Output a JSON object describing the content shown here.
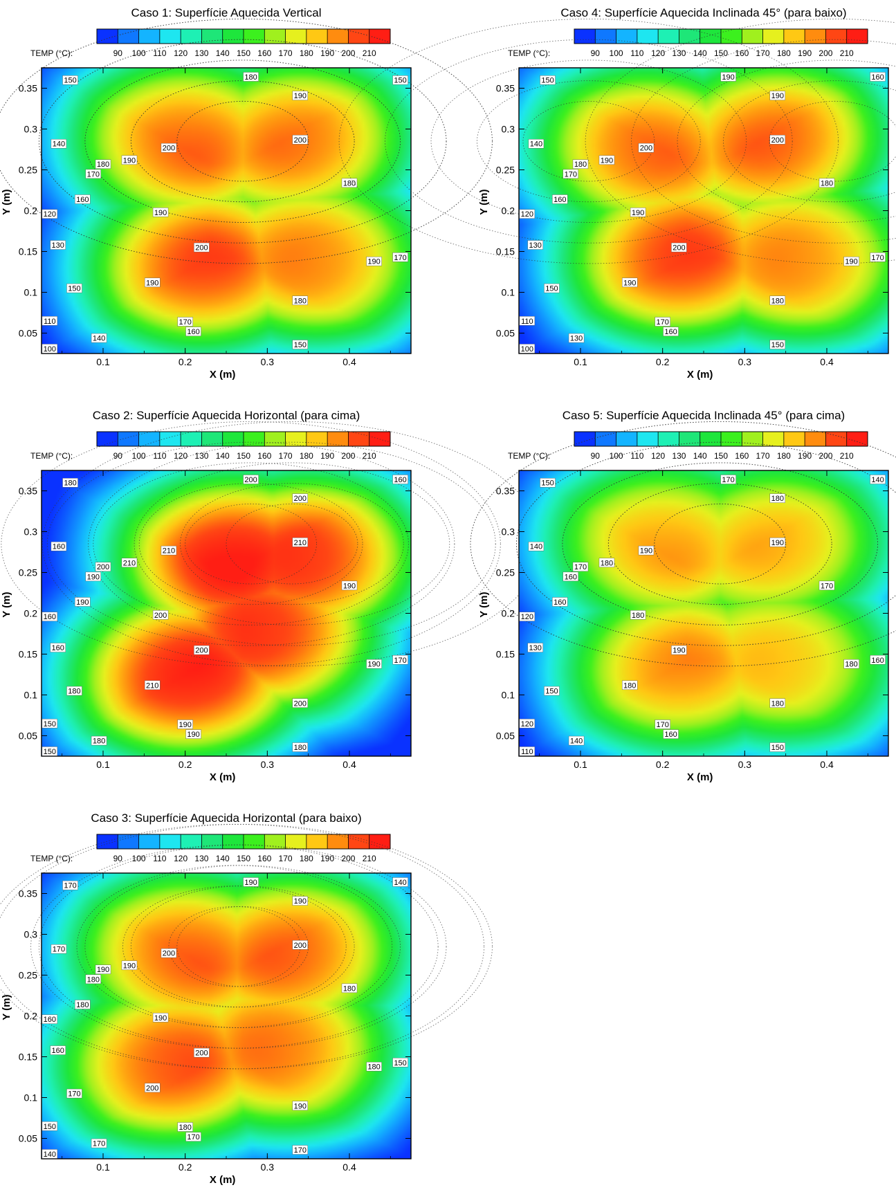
{
  "colorbar": {
    "label": "TEMP (°C):",
    "ticks": [
      "90",
      "100",
      "110",
      "120",
      "130",
      "140",
      "150",
      "160",
      "170",
      "180",
      "190",
      "200",
      "210"
    ],
    "colors": [
      "#0a32ff",
      "#0f78ff",
      "#14b4ff",
      "#1ee6f0",
      "#1ef0b4",
      "#1ee678",
      "#1ee63c",
      "#3cf01e",
      "#a0f01e",
      "#e6f01e",
      "#ffc814",
      "#ff8c0f",
      "#ff4614",
      "#ff1e14"
    ]
  },
  "chart_data": [
    {
      "type": "heatmap",
      "title": "Caso 1: Superfície Aquecida Vertical",
      "xlabel": "X (m)",
      "ylabel": "Y (m)",
      "xlim": [
        0.025,
        0.475
      ],
      "ylim": [
        0.025,
        0.375
      ],
      "xticks": [
        "0.1",
        "0.2",
        "0.3",
        "0.4"
      ],
      "yticks": [
        "0.05",
        "0.1",
        "0.15",
        "0.2",
        "0.25",
        "0.3",
        "0.35"
      ],
      "hotspots": [
        {
          "x": 0.2,
          "y": 0.29,
          "value": 200
        },
        {
          "x": 0.34,
          "y": 0.29,
          "value": 200
        },
        {
          "x": 0.22,
          "y": 0.13,
          "value": 203
        },
        {
          "x": 0.36,
          "y": 0.14,
          "value": 199
        }
      ],
      "contour_labels": [
        {
          "x": 0.06,
          "y": 0.36,
          "text": "150"
        },
        {
          "x": 0.28,
          "y": 0.364,
          "text": "180"
        },
        {
          "x": 0.462,
          "y": 0.36,
          "text": "150"
        },
        {
          "x": 0.34,
          "y": 0.341,
          "text": "190"
        },
        {
          "x": 0.046,
          "y": 0.282,
          "text": "140"
        },
        {
          "x": 0.18,
          "y": 0.277,
          "text": "200"
        },
        {
          "x": 0.34,
          "y": 0.287,
          "text": "200"
        },
        {
          "x": 0.132,
          "y": 0.262,
          "text": "190"
        },
        {
          "x": 0.1,
          "y": 0.257,
          "text": "180"
        },
        {
          "x": 0.088,
          "y": 0.245,
          "text": "170"
        },
        {
          "x": 0.4,
          "y": 0.234,
          "text": "180"
        },
        {
          "x": 0.075,
          "y": 0.214,
          "text": "160"
        },
        {
          "x": 0.035,
          "y": 0.196,
          "text": "120"
        },
        {
          "x": 0.17,
          "y": 0.198,
          "text": "190"
        },
        {
          "x": 0.045,
          "y": 0.158,
          "text": "130"
        },
        {
          "x": 0.22,
          "y": 0.155,
          "text": "200"
        },
        {
          "x": 0.462,
          "y": 0.143,
          "text": "170"
        },
        {
          "x": 0.43,
          "y": 0.138,
          "text": "190"
        },
        {
          "x": 0.16,
          "y": 0.112,
          "text": "190"
        },
        {
          "x": 0.065,
          "y": 0.105,
          "text": "150"
        },
        {
          "x": 0.34,
          "y": 0.09,
          "text": "180"
        },
        {
          "x": 0.035,
          "y": 0.065,
          "text": "110"
        },
        {
          "x": 0.2,
          "y": 0.064,
          "text": "170"
        },
        {
          "x": 0.21,
          "y": 0.052,
          "text": "160"
        },
        {
          "x": 0.095,
          "y": 0.044,
          "text": "140"
        },
        {
          "x": 0.34,
          "y": 0.036,
          "text": "150"
        },
        {
          "x": 0.035,
          "y": 0.031,
          "text": "100"
        }
      ]
    },
    {
      "type": "heatmap",
      "title": "Caso 4: Superfície Aquecida Inclinada 45° (para baixo)",
      "xlabel": "X (m)",
      "ylabel": "Y (m)",
      "xlim": [
        0.025,
        0.475
      ],
      "ylim": [
        0.025,
        0.375
      ],
      "xticks": [
        "0.1",
        "0.2",
        "0.3",
        "0.4"
      ],
      "yticks": [
        "0.05",
        "0.1",
        "0.15",
        "0.2",
        "0.25",
        "0.3",
        "0.35"
      ],
      "hotspots": [
        {
          "x": 0.34,
          "y": 0.29,
          "value": 203
        },
        {
          "x": 0.18,
          "y": 0.28,
          "value": 200
        },
        {
          "x": 0.22,
          "y": 0.14,
          "value": 203
        },
        {
          "x": 0.37,
          "y": 0.14,
          "value": 199
        }
      ],
      "contour_labels": [
        {
          "x": 0.06,
          "y": 0.36,
          "text": "150"
        },
        {
          "x": 0.28,
          "y": 0.364,
          "text": "190"
        },
        {
          "x": 0.462,
          "y": 0.364,
          "text": "160"
        },
        {
          "x": 0.34,
          "y": 0.341,
          "text": "190"
        },
        {
          "x": 0.046,
          "y": 0.282,
          "text": "140"
        },
        {
          "x": 0.18,
          "y": 0.277,
          "text": "200"
        },
        {
          "x": 0.34,
          "y": 0.287,
          "text": "200"
        },
        {
          "x": 0.132,
          "y": 0.262,
          "text": "190"
        },
        {
          "x": 0.1,
          "y": 0.257,
          "text": "180"
        },
        {
          "x": 0.088,
          "y": 0.245,
          "text": "170"
        },
        {
          "x": 0.4,
          "y": 0.234,
          "text": "180"
        },
        {
          "x": 0.075,
          "y": 0.214,
          "text": "160"
        },
        {
          "x": 0.035,
          "y": 0.196,
          "text": "120"
        },
        {
          "x": 0.17,
          "y": 0.198,
          "text": "190"
        },
        {
          "x": 0.045,
          "y": 0.158,
          "text": "130"
        },
        {
          "x": 0.22,
          "y": 0.155,
          "text": "200"
        },
        {
          "x": 0.462,
          "y": 0.143,
          "text": "170"
        },
        {
          "x": 0.43,
          "y": 0.138,
          "text": "190"
        },
        {
          "x": 0.16,
          "y": 0.112,
          "text": "190"
        },
        {
          "x": 0.065,
          "y": 0.105,
          "text": "150"
        },
        {
          "x": 0.34,
          "y": 0.09,
          "text": "180"
        },
        {
          "x": 0.035,
          "y": 0.065,
          "text": "110"
        },
        {
          "x": 0.2,
          "y": 0.064,
          "text": "170"
        },
        {
          "x": 0.21,
          "y": 0.052,
          "text": "160"
        },
        {
          "x": 0.095,
          "y": 0.044,
          "text": "130"
        },
        {
          "x": 0.34,
          "y": 0.036,
          "text": "150"
        },
        {
          "x": 0.035,
          "y": 0.031,
          "text": "100"
        }
      ]
    },
    {
      "type": "heatmap",
      "title": "Caso 2: Superfície Aquecida Horizontal (para cima)",
      "xlabel": "X (m)",
      "ylabel": "Y (m)",
      "xlim": [
        0.025,
        0.475
      ],
      "ylim": [
        0.025,
        0.375
      ],
      "xticks": [
        "0.1",
        "0.2",
        "0.3",
        "0.4"
      ],
      "yticks": [
        "0.05",
        "0.1",
        "0.15",
        "0.2",
        "0.25",
        "0.3",
        "0.35"
      ],
      "hotspots": [
        {
          "x": 0.26,
          "y": 0.27,
          "value": 212
        },
        {
          "x": 0.35,
          "y": 0.27,
          "value": 211
        },
        {
          "x": 0.2,
          "y": 0.12,
          "value": 212
        },
        {
          "x": 0.3,
          "y": 0.18,
          "value": 206
        }
      ],
      "contour_labels": [
        {
          "x": 0.06,
          "y": 0.36,
          "text": "180"
        },
        {
          "x": 0.28,
          "y": 0.364,
          "text": "200"
        },
        {
          "x": 0.462,
          "y": 0.364,
          "text": "160"
        },
        {
          "x": 0.34,
          "y": 0.341,
          "text": "200"
        },
        {
          "x": 0.046,
          "y": 0.282,
          "text": "160"
        },
        {
          "x": 0.18,
          "y": 0.277,
          "text": "210"
        },
        {
          "x": 0.34,
          "y": 0.287,
          "text": "210"
        },
        {
          "x": 0.132,
          "y": 0.262,
          "text": "210"
        },
        {
          "x": 0.1,
          "y": 0.257,
          "text": "200"
        },
        {
          "x": 0.088,
          "y": 0.245,
          "text": "190"
        },
        {
          "x": 0.4,
          "y": 0.234,
          "text": "190"
        },
        {
          "x": 0.075,
          "y": 0.214,
          "text": "190"
        },
        {
          "x": 0.035,
          "y": 0.196,
          "text": "160"
        },
        {
          "x": 0.17,
          "y": 0.198,
          "text": "200"
        },
        {
          "x": 0.045,
          "y": 0.158,
          "text": "160"
        },
        {
          "x": 0.22,
          "y": 0.155,
          "text": "200"
        },
        {
          "x": 0.462,
          "y": 0.143,
          "text": "170"
        },
        {
          "x": 0.43,
          "y": 0.138,
          "text": "190"
        },
        {
          "x": 0.16,
          "y": 0.112,
          "text": "210"
        },
        {
          "x": 0.065,
          "y": 0.105,
          "text": "180"
        },
        {
          "x": 0.34,
          "y": 0.09,
          "text": "200"
        },
        {
          "x": 0.035,
          "y": 0.065,
          "text": "150"
        },
        {
          "x": 0.2,
          "y": 0.064,
          "text": "190"
        },
        {
          "x": 0.21,
          "y": 0.052,
          "text": "190"
        },
        {
          "x": 0.095,
          "y": 0.044,
          "text": "180"
        },
        {
          "x": 0.34,
          "y": 0.036,
          "text": "180"
        },
        {
          "x": 0.035,
          "y": 0.031,
          "text": "150"
        }
      ]
    },
    {
      "type": "heatmap",
      "title": "Caso 5: Superfície Aquecida Inclinada 45° (para cima)",
      "xlabel": "X (m)",
      "ylabel": "Y (m)",
      "xlim": [
        0.025,
        0.475
      ],
      "ylim": [
        0.025,
        0.375
      ],
      "xticks": [
        "0.1",
        "0.2",
        "0.3",
        "0.4"
      ],
      "yticks": [
        "0.05",
        "0.1",
        "0.15",
        "0.2",
        "0.25",
        "0.3",
        "0.35"
      ],
      "hotspots": [
        {
          "x": 0.2,
          "y": 0.29,
          "value": 191
        },
        {
          "x": 0.34,
          "y": 0.29,
          "value": 191
        },
        {
          "x": 0.22,
          "y": 0.13,
          "value": 192
        },
        {
          "x": 0.35,
          "y": 0.14,
          "value": 188
        }
      ],
      "contour_labels": [
        {
          "x": 0.06,
          "y": 0.36,
          "text": "150"
        },
        {
          "x": 0.28,
          "y": 0.364,
          "text": "170"
        },
        {
          "x": 0.462,
          "y": 0.364,
          "text": "140"
        },
        {
          "x": 0.34,
          "y": 0.341,
          "text": "180"
        },
        {
          "x": 0.046,
          "y": 0.282,
          "text": "140"
        },
        {
          "x": 0.18,
          "y": 0.277,
          "text": "190"
        },
        {
          "x": 0.34,
          "y": 0.287,
          "text": "190"
        },
        {
          "x": 0.132,
          "y": 0.262,
          "text": "180"
        },
        {
          "x": 0.1,
          "y": 0.257,
          "text": "170"
        },
        {
          "x": 0.088,
          "y": 0.245,
          "text": "160"
        },
        {
          "x": 0.4,
          "y": 0.234,
          "text": "170"
        },
        {
          "x": 0.075,
          "y": 0.214,
          "text": "160"
        },
        {
          "x": 0.035,
          "y": 0.196,
          "text": "120"
        },
        {
          "x": 0.17,
          "y": 0.198,
          "text": "180"
        },
        {
          "x": 0.045,
          "y": 0.158,
          "text": "130"
        },
        {
          "x": 0.22,
          "y": 0.155,
          "text": "190"
        },
        {
          "x": 0.462,
          "y": 0.143,
          "text": "160"
        },
        {
          "x": 0.43,
          "y": 0.138,
          "text": "180"
        },
        {
          "x": 0.16,
          "y": 0.112,
          "text": "180"
        },
        {
          "x": 0.065,
          "y": 0.105,
          "text": "150"
        },
        {
          "x": 0.34,
          "y": 0.09,
          "text": "180"
        },
        {
          "x": 0.035,
          "y": 0.065,
          "text": "120"
        },
        {
          "x": 0.2,
          "y": 0.064,
          "text": "170"
        },
        {
          "x": 0.21,
          "y": 0.052,
          "text": "160"
        },
        {
          "x": 0.095,
          "y": 0.044,
          "text": "140"
        },
        {
          "x": 0.34,
          "y": 0.036,
          "text": "150"
        },
        {
          "x": 0.035,
          "y": 0.031,
          "text": "110"
        }
      ]
    },
    {
      "type": "heatmap",
      "title": "Caso 3: Superfície Aquecida Horizontal (para baixo)",
      "xlabel": "X (m)",
      "ylabel": "Y (m)",
      "xlim": [
        0.025,
        0.475
      ],
      "ylim": [
        0.025,
        0.375
      ],
      "xticks": [
        "0.1",
        "0.2",
        "0.3",
        "0.4"
      ],
      "yticks": [
        "0.05",
        "0.1",
        "0.15",
        "0.2",
        "0.25",
        "0.3",
        "0.35"
      ],
      "hotspots": [
        {
          "x": 0.2,
          "y": 0.28,
          "value": 200
        },
        {
          "x": 0.33,
          "y": 0.28,
          "value": 202
        },
        {
          "x": 0.18,
          "y": 0.14,
          "value": 202
        },
        {
          "x": 0.32,
          "y": 0.16,
          "value": 197
        }
      ],
      "contour_labels": [
        {
          "x": 0.06,
          "y": 0.36,
          "text": "170"
        },
        {
          "x": 0.28,
          "y": 0.364,
          "text": "190"
        },
        {
          "x": 0.462,
          "y": 0.364,
          "text": "140"
        },
        {
          "x": 0.34,
          "y": 0.341,
          "text": "190"
        },
        {
          "x": 0.046,
          "y": 0.282,
          "text": "170"
        },
        {
          "x": 0.18,
          "y": 0.277,
          "text": "200"
        },
        {
          "x": 0.34,
          "y": 0.287,
          "text": "200"
        },
        {
          "x": 0.132,
          "y": 0.262,
          "text": "190"
        },
        {
          "x": 0.1,
          "y": 0.257,
          "text": "190"
        },
        {
          "x": 0.088,
          "y": 0.245,
          "text": "180"
        },
        {
          "x": 0.4,
          "y": 0.234,
          "text": "180"
        },
        {
          "x": 0.075,
          "y": 0.214,
          "text": "180"
        },
        {
          "x": 0.035,
          "y": 0.196,
          "text": "160"
        },
        {
          "x": 0.17,
          "y": 0.198,
          "text": "190"
        },
        {
          "x": 0.045,
          "y": 0.158,
          "text": "160"
        },
        {
          "x": 0.22,
          "y": 0.155,
          "text": "200"
        },
        {
          "x": 0.462,
          "y": 0.143,
          "text": "150"
        },
        {
          "x": 0.43,
          "y": 0.138,
          "text": "180"
        },
        {
          "x": 0.16,
          "y": 0.112,
          "text": "200"
        },
        {
          "x": 0.065,
          "y": 0.105,
          "text": "170"
        },
        {
          "x": 0.34,
          "y": 0.09,
          "text": "190"
        },
        {
          "x": 0.035,
          "y": 0.065,
          "text": "150"
        },
        {
          "x": 0.2,
          "y": 0.064,
          "text": "180"
        },
        {
          "x": 0.21,
          "y": 0.052,
          "text": "170"
        },
        {
          "x": 0.095,
          "y": 0.044,
          "text": "170"
        },
        {
          "x": 0.34,
          "y": 0.036,
          "text": "170"
        },
        {
          "x": 0.035,
          "y": 0.031,
          "text": "140"
        }
      ]
    }
  ]
}
